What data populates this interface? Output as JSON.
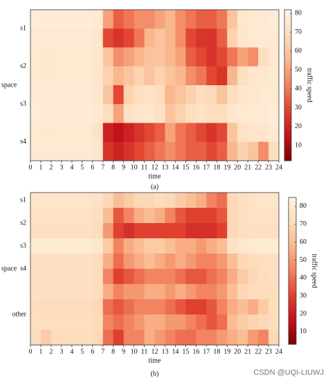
{
  "chart_data": [
    {
      "type": "heatmap",
      "caption": "(a)",
      "xlabel": "time",
      "ylabel": "space",
      "colorbar_label": "traffic speed",
      "xlim": [
        0,
        24
      ],
      "xticks": [
        0,
        1,
        2,
        3,
        4,
        5,
        6,
        7,
        8,
        9,
        10,
        11,
        12,
        13,
        14,
        15,
        16,
        17,
        18,
        19,
        20,
        21,
        22,
        23,
        24
      ],
      "zlim": [
        2,
        82
      ],
      "zticks": [
        10,
        20,
        30,
        40,
        50,
        60,
        70,
        80
      ],
      "colormap": [
        "#7f0000",
        "#c1121c",
        "#e0412f",
        "#f2805e",
        "#f9b88e",
        "#fddcbb",
        "#fff3e3"
      ],
      "groups": [
        {
          "label": "s1",
          "values": [
            [
              78,
              78,
              78,
              78,
              78,
              78,
              76,
              50,
              35,
              40,
              45,
              45,
              50,
              55,
              45,
              40,
              35,
              35,
              40,
              60,
              75,
              76,
              77,
              78
            ],
            [
              77,
              77,
              77,
              77,
              77,
              77,
              75,
              30,
              25,
              30,
              40,
              55,
              60,
              55,
              45,
              30,
              25,
              25,
              35,
              65,
              74,
              76,
              77,
              77
            ]
          ]
        },
        {
          "label": "s2",
          "values": [
            [
              76,
              76,
              76,
              76,
              76,
              76,
              74,
              60,
              45,
              50,
              55,
              60,
              60,
              55,
              50,
              35,
              30,
              25,
              30,
              40,
              50,
              45,
              70,
              75
            ],
            [
              76,
              76,
              76,
              76,
              76,
              76,
              74,
              65,
              55,
              60,
              65,
              60,
              65,
              60,
              55,
              45,
              40,
              30,
              25,
              55,
              70,
              74,
              75,
              76
            ]
          ]
        },
        {
          "label": "s3",
          "values": [
            [
              77,
              77,
              77,
              77,
              77,
              77,
              75,
              60,
              30,
              65,
              70,
              72,
              70,
              55,
              60,
              65,
              70,
              68,
              60,
              70,
              74,
              75,
              76,
              77
            ],
            [
              78,
              78,
              78,
              78,
              78,
              78,
              76,
              70,
              50,
              72,
              74,
              75,
              72,
              60,
              65,
              70,
              72,
              70,
              70,
              74,
              76,
              77,
              77,
              78
            ]
          ]
        },
        {
          "label": "s4",
          "values": [
            [
              76,
              76,
              76,
              76,
              76,
              76,
              72,
              20,
              15,
              20,
              25,
              30,
              35,
              50,
              40,
              35,
              30,
              25,
              30,
              60,
              72,
              74,
              74,
              76
            ],
            [
              77,
              77,
              77,
              77,
              77,
              77,
              74,
              25,
              20,
              25,
              30,
              35,
              40,
              45,
              40,
              35,
              35,
              30,
              35,
              55,
              65,
              60,
              45,
              70
            ]
          ]
        }
      ]
    },
    {
      "type": "heatmap",
      "caption": "(b)",
      "xlabel": "time",
      "ylabel": "space",
      "colorbar_label": "traffic speed",
      "xlim": [
        0,
        24
      ],
      "xticks": [
        0,
        1,
        2,
        3,
        4,
        5,
        6,
        7,
        8,
        9,
        10,
        11,
        12,
        13,
        14,
        15,
        16,
        17,
        18,
        19,
        20,
        21,
        22,
        23,
        24
      ],
      "zlim": [
        3,
        85
      ],
      "zticks": [
        10,
        20,
        30,
        40,
        50,
        60,
        70,
        80
      ],
      "colormap": [
        "#7f0000",
        "#c1121c",
        "#e0412f",
        "#f2805e",
        "#f9b88e",
        "#fddcbb",
        "#fff3e3"
      ],
      "groups": [
        {
          "label": "s1",
          "values": [
            [
              76,
              76,
              76,
              76,
              76,
              76,
              75,
              70,
              60,
              65,
              70,
              70,
              72,
              70,
              65,
              60,
              55,
              45,
              40,
              70,
              74,
              75,
              76,
              76
            ]
          ]
        },
        {
          "label": "s2",
          "values": [
            [
              75,
              75,
              75,
              75,
              75,
              75,
              74,
              60,
              35,
              45,
              55,
              60,
              55,
              45,
              35,
              30,
              30,
              30,
              35,
              70,
              74,
              75,
              75,
              75
            ],
            [
              74,
              74,
              74,
              74,
              74,
              74,
              72,
              50,
              30,
              25,
              30,
              30,
              30,
              30,
              30,
              25,
              25,
              25,
              30,
              70,
              73,
              74,
              74,
              74
            ]
          ]
        },
        {
          "label": "s3",
          "values": [
            [
              80,
              80,
              80,
              80,
              80,
              80,
              78,
              65,
              45,
              55,
              60,
              65,
              65,
              60,
              55,
              55,
              50,
              55,
              60,
              75,
              78,
              79,
              80,
              80
            ]
          ]
        },
        {
          "label": "s4",
          "values": [
            [
              74,
              74,
              74,
              74,
              74,
              74,
              72,
              55,
              40,
              50,
              55,
              60,
              55,
              50,
              55,
              50,
              45,
              45,
              50,
              60,
              70,
              72,
              73,
              74
            ],
            [
              74,
              74,
              74,
              74,
              74,
              74,
              72,
              45,
              30,
              35,
              40,
              45,
              45,
              45,
              40,
              35,
              35,
              40,
              45,
              55,
              65,
              70,
              72,
              74
            ]
          ]
        },
        {
          "label": "other",
          "values": [
            [
              74,
              74,
              74,
              74,
              74,
              74,
              72,
              55,
              45,
              50,
              50,
              55,
              55,
              50,
              55,
              50,
              45,
              45,
              50,
              60,
              70,
              72,
              72,
              73
            ],
            [
              72,
              72,
              72,
              72,
              72,
              72,
              70,
              40,
              35,
              40,
              45,
              45,
              45,
              40,
              35,
              30,
              30,
              35,
              45,
              55,
              60,
              55,
              65,
              72
            ],
            [
              73,
              73,
              73,
              73,
              73,
              73,
              71,
              45,
              40,
              45,
              50,
              55,
              55,
              50,
              50,
              45,
              40,
              35,
              40,
              60,
              65,
              68,
              70,
              72
            ],
            [
              72,
              65,
              72,
              72,
              72,
              72,
              70,
              40,
              30,
              45,
              45,
              55,
              50,
              45,
              40,
              40,
              45,
              45,
              50,
              55,
              60,
              50,
              45,
              70
            ]
          ]
        }
      ]
    }
  ],
  "watermark": "CSDN @UQI-LIUWJ"
}
